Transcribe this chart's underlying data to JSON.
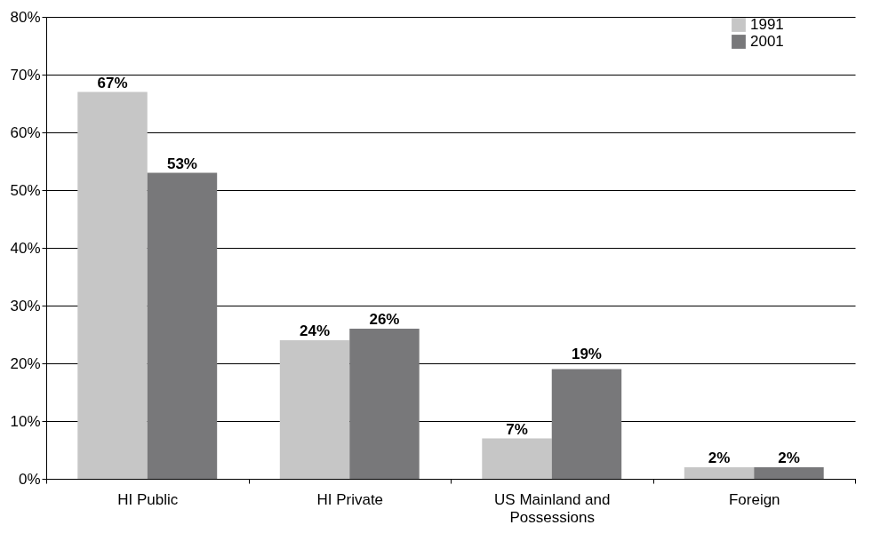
{
  "chart_data": {
    "type": "bar",
    "categories": [
      "HI Public",
      "HI Private",
      "US Mainland and Possessions",
      "Foreign"
    ],
    "series": [
      {
        "name": "1991",
        "color": "#c6c6c6",
        "values": [
          67,
          24,
          7,
          2
        ],
        "value_labels": [
          "67%",
          "24%",
          "7%",
          "2%"
        ]
      },
      {
        "name": "2001",
        "color": "#78787a",
        "values": [
          53,
          26,
          19,
          2
        ],
        "value_labels": [
          "53%",
          "26%",
          "19%",
          "2%"
        ]
      }
    ],
    "ylim": [
      0,
      80
    ],
    "yticks": [
      {
        "value": 0,
        "label": "0%"
      },
      {
        "value": 10,
        "label": "10%"
      },
      {
        "value": 20,
        "label": "20%"
      },
      {
        "value": 30,
        "label": "30%"
      },
      {
        "value": 40,
        "label": "40%"
      },
      {
        "value": 50,
        "label": "50%"
      },
      {
        "value": 60,
        "label": "60%"
      },
      {
        "value": 70,
        "label": "70%"
      },
      {
        "value": 80,
        "label": "80%"
      }
    ],
    "grid": "y",
    "legend": "right"
  }
}
